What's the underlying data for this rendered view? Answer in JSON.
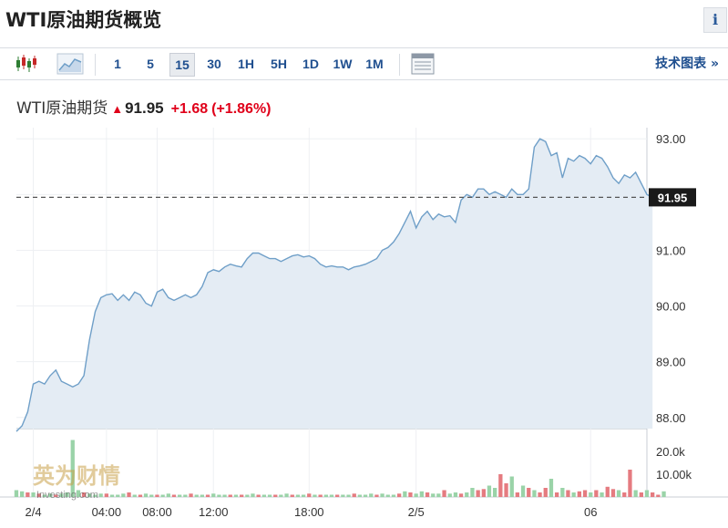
{
  "header": {
    "title": "WTI原油期货概览",
    "info_label": "i"
  },
  "toolbar": {
    "timeframes": [
      "1",
      "5",
      "15",
      "30",
      "1H",
      "5H",
      "1D",
      "1W",
      "1M"
    ],
    "active": "15",
    "tech_chart_label": "技术图表 »"
  },
  "quote": {
    "name": "WTI原油期货",
    "arrow": "▲",
    "price": "91.95",
    "change": "+1.68",
    "change_pct": "(+1.86%)"
  },
  "colors": {
    "line": "#6f9fc8",
    "area": "#e4ecf4",
    "up": "#e0001a",
    "vol_up": "#9ad3a8",
    "vol_down": "#e57b80"
  },
  "watermark": {
    "text": "英为财情",
    "sub": "Investing.com"
  },
  "chart_data": {
    "type": "area",
    "current_value": 91.95,
    "ylim": [
      87.8,
      93.2
    ],
    "y_ticks": [
      88.0,
      89.0,
      90.0,
      91.0,
      92.0,
      93.0
    ],
    "y_tick_labels": [
      "88.00",
      "89.00",
      "90.00",
      "91.00",
      "93.00"
    ],
    "current_label": "91.95",
    "x_tick_labels": [
      "2/4",
      "04:00",
      "08:00",
      "12:00",
      "18:00",
      "2/5",
      "06"
    ],
    "x_range_bars": [
      0,
      112
    ],
    "x_tick_positions": [
      3,
      16,
      25,
      35,
      52,
      71,
      102
    ],
    "series": [
      {
        "values": [
          87.75,
          87.85,
          88.1,
          88.6,
          88.65,
          88.6,
          88.75,
          88.85,
          88.65,
          88.6,
          88.55,
          88.6,
          88.75,
          89.4,
          89.9,
          90.15,
          90.2,
          90.22,
          90.1,
          90.2,
          90.1,
          90.25,
          90.2,
          90.05,
          90.0,
          90.25,
          90.3,
          90.15,
          90.1,
          90.15,
          90.2,
          90.15,
          90.2,
          90.35,
          90.6,
          90.65,
          90.62,
          90.7,
          90.75,
          90.72,
          90.7,
          90.85,
          90.95,
          90.95,
          90.9,
          90.85,
          90.85,
          90.8,
          90.85,
          90.9,
          90.92,
          90.88,
          90.9,
          90.85,
          90.75,
          90.7,
          90.72,
          90.7,
          90.7,
          90.65,
          90.7,
          90.72,
          90.75,
          90.8,
          90.85,
          91.0,
          91.05,
          91.15,
          91.3,
          91.5,
          91.7,
          91.4,
          91.6,
          91.7,
          91.55,
          91.65,
          91.6,
          91.62,
          91.5,
          91.9,
          92.0,
          91.95,
          92.1,
          92.1,
          92.0,
          92.05,
          92.0,
          91.95,
          92.1,
          92.0,
          92.0,
          92.1,
          92.85,
          93.0,
          92.95,
          92.7,
          92.75,
          92.3,
          92.65,
          92.6,
          92.7,
          92.65,
          92.55,
          92.7,
          92.65,
          92.5,
          92.3,
          92.2,
          92.35,
          92.3,
          92.4,
          92.2,
          92.0,
          91.95
        ]
      }
    ],
    "volume": {
      "ylim": [
        0,
        30000
      ],
      "y_tick_labels": [
        "20.0k",
        "10.00k"
      ],
      "y_ticks": [
        20000,
        10000
      ],
      "values": [
        3000,
        2500,
        2000,
        2000,
        1500,
        1000,
        1500,
        1000,
        1500,
        2000,
        25000,
        3000,
        2000,
        1500,
        1000,
        1500,
        1500,
        1000,
        1000,
        1500,
        2000,
        1000,
        1000,
        1500,
        1000,
        1000,
        1000,
        1500,
        1000,
        1000,
        1000,
        1500,
        1000,
        1000,
        1000,
        1500,
        1000,
        1000,
        1000,
        1000,
        1000,
        1000,
        1500,
        1000,
        1000,
        1000,
        1000,
        1000,
        1500,
        1000,
        1000,
        1000,
        1500,
        1000,
        1000,
        1000,
        1000,
        1000,
        1000,
        1000,
        1500,
        1000,
        1000,
        1500,
        1000,
        1500,
        1000,
        1000,
        1500,
        2500,
        2000,
        1500,
        2500,
        2000,
        1500,
        1500,
        3000,
        1500,
        2000,
        1500,
        2000,
        4000,
        3000,
        3500,
        5000,
        4000,
        10000,
        6000,
        9000,
        2000,
        5000,
        4000,
        3000,
        2000,
        4000,
        8000,
        2000,
        4000,
        3000,
        2000,
        2500,
        3000,
        2000,
        3000,
        2000,
        4500,
        3500,
        3000,
        2000,
        12000,
        3000,
        2000,
        3000,
        2000,
        1000,
        2500
      ],
      "up": [
        1,
        1,
        0,
        1,
        0,
        1,
        1,
        0,
        1,
        1,
        1,
        1,
        0,
        1,
        1,
        1,
        0,
        1,
        1,
        1,
        0,
        1,
        0,
        1,
        1,
        0,
        1,
        1,
        0,
        1,
        1,
        0,
        1,
        1,
        0,
        1,
        1,
        1,
        0,
        1,
        0,
        1,
        1,
        0,
        1,
        1,
        0,
        1,
        1,
        0,
        1,
        1,
        0,
        1,
        0,
        1,
        1,
        0,
        1,
        1,
        0,
        1,
        1,
        1,
        0,
        1,
        1,
        1,
        0,
        1,
        0,
        1,
        1,
        0,
        1,
        1,
        0,
        1,
        1,
        0,
        1,
        1,
        0,
        0,
        1,
        1,
        0,
        0,
        1,
        0,
        1,
        0,
        1,
        0,
        0,
        1,
        0,
        1,
        0,
        1,
        0,
        0,
        1,
        0,
        1,
        0,
        0,
        1,
        0,
        0,
        1,
        0,
        1,
        0,
        0,
        1
      ]
    }
  }
}
